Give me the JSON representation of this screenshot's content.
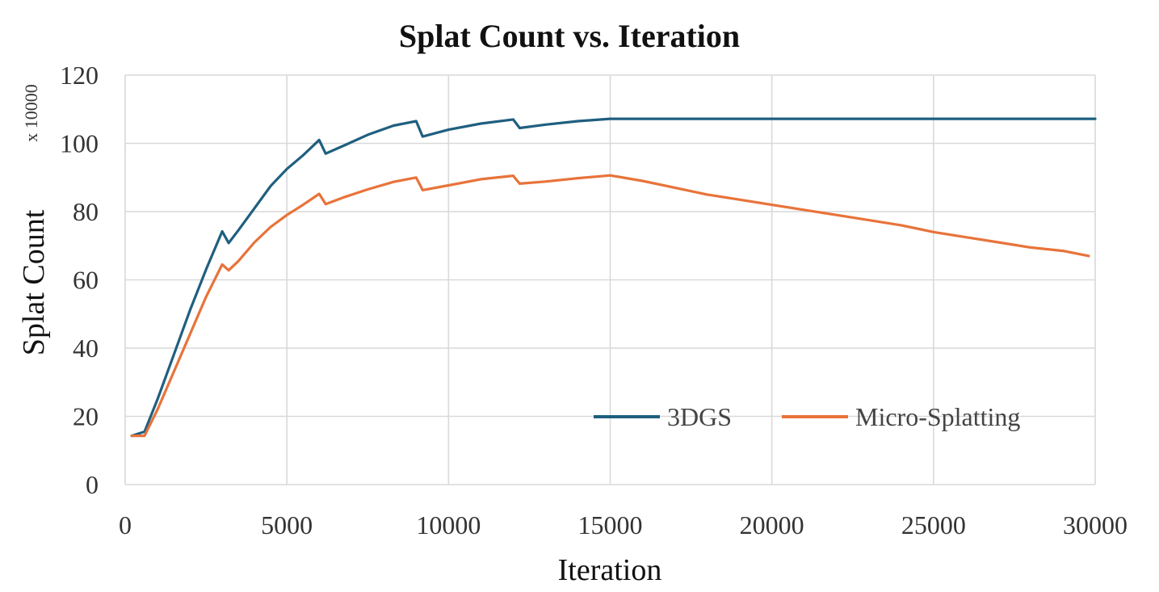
{
  "chart_data": {
    "type": "line",
    "title": "Splat Count vs. Iteration",
    "xlabel": "Iteration",
    "ylabel": "Splat Count",
    "y_unit_note": "x 10000",
    "xlim": [
      0,
      30000
    ],
    "ylim": [
      0,
      120
    ],
    "x_ticks": [
      0,
      5000,
      10000,
      15000,
      20000,
      25000,
      30000
    ],
    "y_ticks": [
      0,
      20,
      40,
      60,
      80,
      100,
      120
    ],
    "grid": true,
    "legend_position": "bottom-right",
    "series": [
      {
        "name": "3DGS",
        "color": "#1f5f7f",
        "points": [
          [
            200,
            14.3
          ],
          [
            600,
            15.5
          ],
          [
            1000,
            25
          ],
          [
            1500,
            38
          ],
          [
            2000,
            51
          ],
          [
            2500,
            63
          ],
          [
            3000,
            74.2
          ],
          [
            3200,
            70.8
          ],
          [
            3500,
            74.5
          ],
          [
            4000,
            81
          ],
          [
            4500,
            87.5
          ],
          [
            5000,
            92.5
          ],
          [
            5500,
            96.5
          ],
          [
            6000,
            101
          ],
          [
            6200,
            97
          ],
          [
            6800,
            99.5
          ],
          [
            7500,
            102.5
          ],
          [
            8300,
            105.2
          ],
          [
            9000,
            106.5
          ],
          [
            9200,
            102
          ],
          [
            10000,
            104
          ],
          [
            11000,
            105.8
          ],
          [
            12000,
            107
          ],
          [
            12200,
            104.5
          ],
          [
            13000,
            105.5
          ],
          [
            14000,
            106.5
          ],
          [
            15000,
            107.2
          ],
          [
            20000,
            107.2
          ],
          [
            25000,
            107.2
          ],
          [
            30000,
            107.2
          ]
        ]
      },
      {
        "name": "Micro-Splatting",
        "color": "#e8733a",
        "points": [
          [
            200,
            14.3
          ],
          [
            600,
            14.3
          ],
          [
            1000,
            22
          ],
          [
            1500,
            33
          ],
          [
            2000,
            44
          ],
          [
            2500,
            55
          ],
          [
            3000,
            64.5
          ],
          [
            3200,
            62.8
          ],
          [
            3500,
            65.5
          ],
          [
            4000,
            71
          ],
          [
            4500,
            75.5
          ],
          [
            5000,
            79
          ],
          [
            5500,
            82
          ],
          [
            6000,
            85.2
          ],
          [
            6200,
            82.2
          ],
          [
            6800,
            84.3
          ],
          [
            7500,
            86.5
          ],
          [
            8300,
            88.7
          ],
          [
            9000,
            90
          ],
          [
            9200,
            86.3
          ],
          [
            10000,
            87.7
          ],
          [
            11000,
            89.5
          ],
          [
            12000,
            90.5
          ],
          [
            12200,
            88.2
          ],
          [
            13000,
            88.8
          ],
          [
            14000,
            89.8
          ],
          [
            15000,
            90.6
          ],
          [
            16000,
            89
          ],
          [
            17000,
            87
          ],
          [
            18000,
            85
          ],
          [
            19000,
            83.5
          ],
          [
            20000,
            82
          ],
          [
            21000,
            80.5
          ],
          [
            22000,
            79
          ],
          [
            23000,
            77.5
          ],
          [
            24000,
            76
          ],
          [
            25000,
            74
          ],
          [
            26000,
            72.5
          ],
          [
            27000,
            71
          ],
          [
            28000,
            69.5
          ],
          [
            29000,
            68.5
          ],
          [
            29800,
            67
          ]
        ]
      }
    ]
  }
}
